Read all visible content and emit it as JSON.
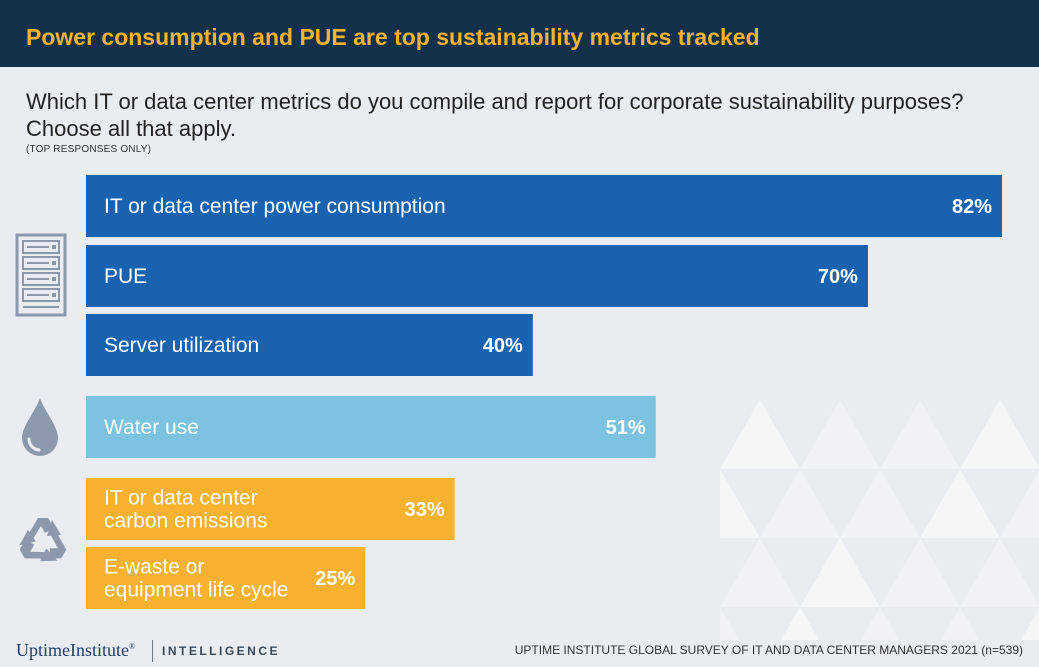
{
  "header": {
    "title": "Power consumption and PUE are top sustainability metrics tracked"
  },
  "question": "Which IT or data center metrics do you compile and report for corporate sustainability purposes? Choose all that apply.",
  "note": "(TOP RESPONSES ONLY)",
  "icons": [
    {
      "name": "server-rack-icon",
      "group": "IT / power"
    },
    {
      "name": "water-drop-icon",
      "group": "water"
    },
    {
      "name": "recycle-icon",
      "group": "carbon / e-waste"
    }
  ],
  "colors": {
    "header_bg": "#14304a",
    "title": "#f7b32d",
    "power_bars": "#1862b0",
    "water_bar": "#7cc3e1",
    "carbon_bars": "#f8b230",
    "icons": "#8c99ad"
  },
  "chart_data": {
    "type": "bar",
    "orientation": "horizontal",
    "title": "",
    "xlabel": "",
    "ylabel": "",
    "xlim": [
      0,
      82
    ],
    "unit": "%",
    "categories": [
      [
        "IT or data center power consumption"
      ],
      [
        "PUE"
      ],
      [
        "Server utilization"
      ],
      [
        "Water use"
      ],
      [
        "IT or data center",
        "carbon emissions"
      ],
      [
        "E-waste or",
        "equipment life cycle"
      ]
    ],
    "values": [
      82,
      70,
      40,
      51,
      33,
      25
    ],
    "value_labels": [
      "82%",
      "70%",
      "40%",
      "51%",
      "33%",
      "25%"
    ],
    "bar_colors": [
      "#1862b0",
      "#1862b0",
      "#1862b0",
      "#7cc3e1",
      "#f8b230",
      "#f8b230"
    ]
  },
  "footer": {
    "brand": "UptimeInstitute",
    "registered": "®",
    "division": "INTELLIGENCE",
    "source": "UPTIME INSTITUTE GLOBAL SURVEY OF IT AND DATA CENTER MANAGERS 2021 (n=539)"
  }
}
